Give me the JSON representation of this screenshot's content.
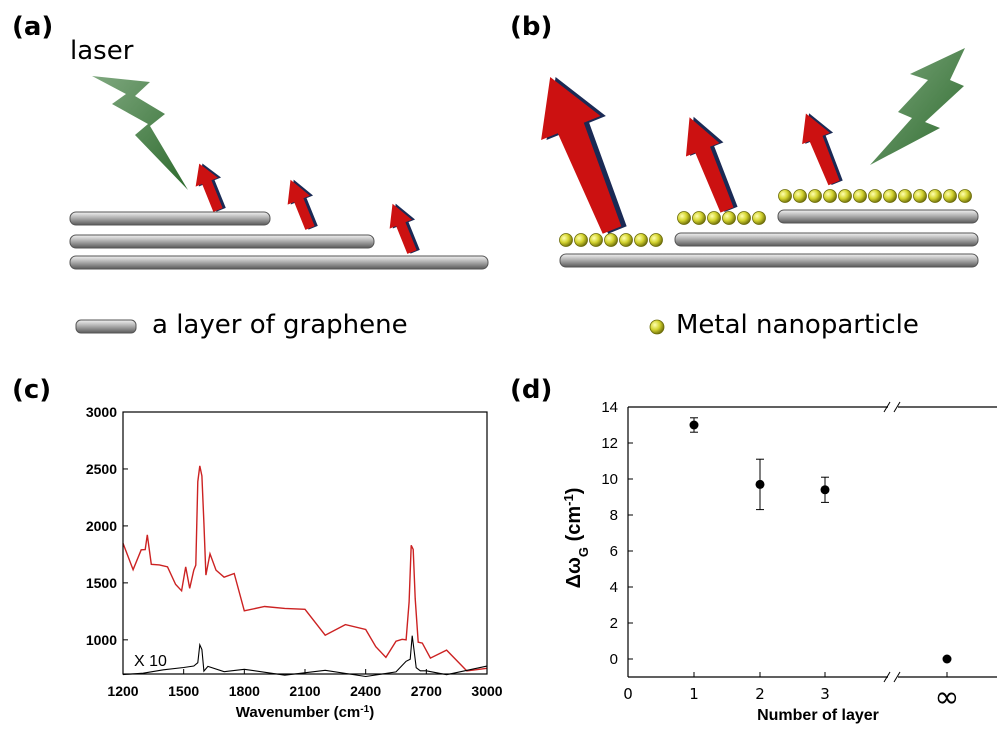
{
  "labels": {
    "a": "(a)",
    "b": "(b)",
    "c": "(c)",
    "d": "(d)",
    "laser": "laser",
    "legend_graphene": "a layer of graphene",
    "legend_metal": "Metal nanoparticle"
  },
  "colors": {
    "laser_bolt": "#2e6b2e",
    "raman_arrow": "#cc1111",
    "arrow_shadow": "#1a2a55",
    "graphene_layer": "#9a9a9a",
    "nanoparticle": "#c8c820",
    "spectrum_with_metal": "#cc2222",
    "spectrum_bare": "#000000"
  },
  "chart_data": [
    {
      "panel": "(c)",
      "type": "line",
      "xlabel": "Wavenumber (cm⁻¹)",
      "ylabel": "",
      "xlim": [
        1200,
        3000
      ],
      "ylim": [
        700,
        3000
      ],
      "x_ticks": [
        1200,
        1500,
        1800,
        2100,
        2400,
        2700,
        3000
      ],
      "y_ticks": [
        1000,
        1500,
        2000,
        2500,
        3000
      ],
      "annotation": "X 10",
      "series": [
        {
          "color": "#cc2222",
          "x": [
            1200,
            1250,
            1290,
            1310,
            1320,
            1340,
            1380,
            1420,
            1460,
            1490,
            1510,
            1530,
            1550,
            1560,
            1570,
            1580,
            1590,
            1600,
            1610,
            1630,
            1660,
            1700,
            1750,
            1800,
            1900,
            2000,
            2100,
            2200,
            2300,
            2400,
            2450,
            2500,
            2550,
            2580,
            2600,
            2615,
            2625,
            2635,
            2645,
            2660,
            2680,
            2720,
            2800,
            2900,
            3000
          ],
          "y": [
            1700,
            1680,
            1700,
            1820,
            1880,
            1680,
            1640,
            1610,
            1580,
            1560,
            1600,
            1590,
            1620,
            1800,
            2200,
            2550,
            2450,
            2000,
            1750,
            1600,
            1560,
            1500,
            1460,
            1420,
            1330,
            1240,
            1170,
            1100,
            1040,
            990,
            950,
            930,
            940,
            980,
            1100,
            1400,
            1750,
            1760,
            1450,
            1100,
            950,
            880,
            840,
            810,
            790
          ]
        },
        {
          "color": "#000000",
          "x": [
            1200,
            1300,
            1400,
            1500,
            1550,
            1570,
            1580,
            1590,
            1600,
            1620,
            1700,
            1800,
            2000,
            2200,
            2400,
            2550,
            2600,
            2620,
            2630,
            2640,
            2650,
            2670,
            2700,
            2800,
            3000
          ],
          "y": [
            730,
            730,
            730,
            730,
            735,
            820,
            940,
            880,
            760,
            735,
            730,
            730,
            730,
            730,
            730,
            735,
            760,
            870,
            990,
            900,
            790,
            740,
            732,
            730,
            730
          ]
        }
      ]
    },
    {
      "panel": "(d)",
      "type": "scatter",
      "xlabel": "Number of layer",
      "ylabel": "Δω",
      "ylabel_subscript": "G",
      "ylabel_unit_prefix": " (cm",
      "ylabel_unit_sup": "-1",
      "ylabel_unit_suffix": ")",
      "x_ticks": [
        "0",
        "1",
        "2",
        "3",
        "∞"
      ],
      "ylim": [
        -1,
        14
      ],
      "y_ticks": [
        0,
        2,
        4,
        6,
        8,
        10,
        12,
        14
      ],
      "axis_break": true,
      "points": [
        {
          "x": "1",
          "y": 13.0,
          "err": 0.4
        },
        {
          "x": "2",
          "y": 9.7,
          "err": 1.4
        },
        {
          "x": "3",
          "y": 9.4,
          "err": 0.7
        },
        {
          "x": "∞",
          "y": 0.0,
          "err": 0
        }
      ]
    }
  ]
}
